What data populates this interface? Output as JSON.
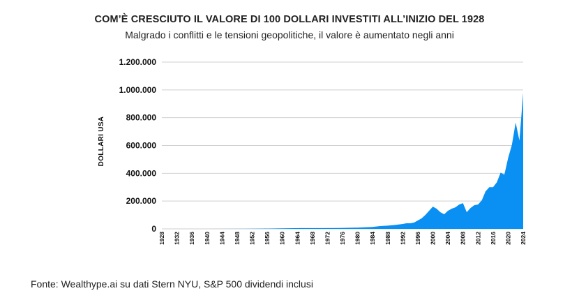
{
  "chart_data": {
    "type": "area",
    "title": "COM’È CRESCIUTO IL VALORE DI 100 DOLLARI INVESTITI ALL’INIZIO DEL 1928",
    "subtitle": "Malgrado i conflitti e le tensioni geopolitiche, il valore è aumentato negli anni",
    "xlabel": "",
    "ylabel": "DOLLARI USA",
    "ylim": [
      0,
      1200000
    ],
    "xlim": [
      1928,
      2024
    ],
    "y_ticks": [
      0,
      200000,
      400000,
      600000,
      800000,
      1000000,
      1200000
    ],
    "y_tick_labels": [
      "0",
      "200.000",
      "400.000",
      "600.000",
      "800.000",
      "1.000.000",
      "1.200.000"
    ],
    "x_tick_labels": [
      "1928",
      "1932",
      "1936",
      "1940",
      "1944",
      "1948",
      "1952",
      "1956",
      "1960",
      "1964",
      "1968",
      "1972",
      "1976",
      "1980",
      "1984",
      "1988",
      "1992",
      "1996",
      "2000",
      "2004",
      "2008",
      "2012",
      "2016",
      "2020",
      "2024"
    ],
    "grid": true,
    "color": "#0a8ff2",
    "x": [
      1928,
      1940,
      1950,
      1955,
      1960,
      1965,
      1970,
      1975,
      1980,
      1982,
      1984,
      1986,
      1988,
      1990,
      1992,
      1993,
      1994,
      1995,
      1996,
      1997,
      1998,
      1999,
      2000,
      2001,
      2002,
      2003,
      2004,
      2005,
      2006,
      2007,
      2008,
      2009,
      2010,
      2011,
      2012,
      2013,
      2014,
      2015,
      2016,
      2017,
      2018,
      2019,
      2020,
      2021,
      2022,
      2023,
      2024
    ],
    "values": [
      100,
      150,
      700,
      2000,
      3500,
      5500,
      5500,
      6000,
      9000,
      11000,
      14000,
      20000,
      23000,
      28000,
      35000,
      40000,
      40000,
      45000,
      60000,
      75000,
      100000,
      130000,
      160000,
      145000,
      120000,
      105000,
      130000,
      145000,
      155000,
      175000,
      185000,
      120000,
      150000,
      170000,
      175000,
      205000,
      270000,
      300000,
      300000,
      335000,
      405000,
      390000,
      510000,
      605000,
      765000,
      635000,
      980000
    ]
  },
  "source": "Fonte: Wealthype.ai su dati Stern NYU, S&P 500 dividendi inclusi"
}
